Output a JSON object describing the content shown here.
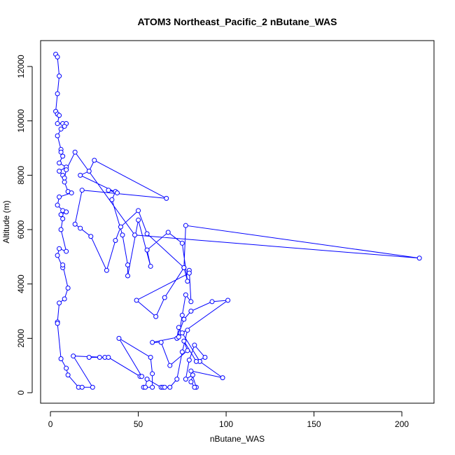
{
  "chart_data": {
    "type": "line",
    "title": "ATOM3 Northeast_Pacific_2 nButane_WAS",
    "x_label": "nButane_WAS",
    "y_label": "Altitude (m)",
    "color": "#0000ff",
    "xlim": [
      -5.6,
      218.3
    ],
    "ylim": [
      -386,
      12953
    ],
    "xticks": [
      0,
      50,
      100,
      150,
      200
    ],
    "yticks": [
      0,
      2000,
      4000,
      6000,
      8000,
      10000,
      12000
    ],
    "x": [
      3,
      4,
      5,
      4,
      3,
      4,
      5,
      4,
      7,
      9,
      8,
      6,
      4,
      6,
      6,
      7,
      5,
      9,
      5,
      7,
      8,
      10,
      12,
      5,
      4,
      7,
      9,
      6,
      7,
      6,
      9,
      5,
      4,
      7,
      7,
      10,
      8,
      5,
      4,
      4,
      6,
      9,
      10,
      16,
      18,
      24,
      13,
      31,
      22,
      28,
      33,
      51,
      52,
      39,
      57,
      58,
      58,
      53,
      54,
      55,
      63,
      64,
      65,
      68,
      72,
      75,
      78,
      74,
      73,
      72,
      76,
      80,
      92,
      101,
      75,
      85,
      98,
      80,
      83,
      82,
      80,
      81,
      77,
      79,
      82,
      88,
      83,
      76,
      78,
      68,
      63,
      58,
      73,
      75,
      77,
      80,
      79,
      79,
      49,
      60,
      65,
      76,
      78,
      75,
      67,
      55,
      57,
      50,
      44,
      44,
      41,
      35,
      37,
      33,
      38,
      17,
      22,
      25,
      66,
      18,
      14,
      17,
      23,
      32,
      37,
      40,
      50,
      55,
      76,
      77,
      210,
      48,
      14,
      9,
      8
    ],
    "values": [
      12450,
      12350,
      11650,
      11000,
      10350,
      10250,
      10200,
      9900,
      9900,
      9900,
      9800,
      9700,
      9450,
      8950,
      8850,
      8700,
      8450,
      8300,
      8150,
      8000,
      7750,
      7400,
      7350,
      7200,
      6900,
      6700,
      6650,
      6550,
      6400,
      6000,
      5200,
      5300,
      5050,
      4600,
      4700,
      3850,
      3450,
      3300,
      2600,
      2550,
      1250,
      900,
      650,
      200,
      200,
      200,
      1350,
      1300,
      1300,
      1300,
      1300,
      600,
      600,
      2000,
      1300,
      700,
      200,
      200,
      200,
      500,
      200,
      200,
      200,
      200,
      500,
      1500,
      2300,
      2200,
      2400,
      2000,
      2700,
      3000,
      3350,
      3400,
      2200,
      1150,
      550,
      800,
      200,
      200,
      400,
      650,
      500,
      1200,
      1750,
      1300,
      1150,
      1900,
      1550,
      1000,
      1850,
      1850,
      2050,
      2850,
      3600,
      3350,
      4500,
      4400,
      3400,
      2800,
      3500,
      4600,
      4100,
      5500,
      5900,
      5250,
      4650,
      6350,
      4300,
      4700,
      5800,
      7100,
      7400,
      7450,
      7350,
      8000,
      8150,
      8550,
      7150,
      7450,
      6200,
      6050,
      5750,
      4500,
      5600,
      6100,
      6700,
      5850,
      4600,
      6150,
      4950,
      5800,
      8850,
      8200,
      7900
    ]
  }
}
